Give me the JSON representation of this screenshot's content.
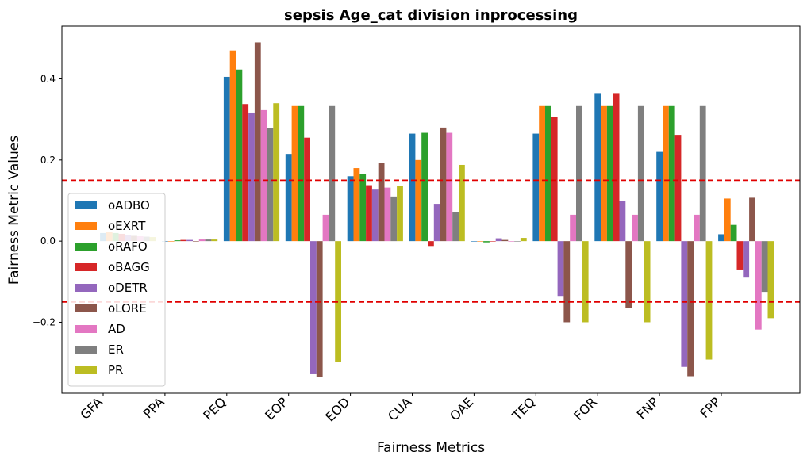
{
  "chart_data": {
    "type": "bar",
    "title": "sepsis Age_cat division inprocessing",
    "xlabel": "Fairness Metrics",
    "ylabel": "Fairness Metric Values",
    "ylim": [
      -0.375,
      0.53
    ],
    "yticks": [
      -0.2,
      0.0,
      0.2,
      0.4
    ],
    "ytick_labels": [
      "−0.2",
      "0.0",
      "0.2",
      "0.4"
    ],
    "categories": [
      "GFA",
      "PPA",
      "PEQ",
      "EOP",
      "EOD",
      "CUA",
      "OAE",
      "TEQ",
      "FOR",
      "FNP",
      "FPP"
    ],
    "threshold_lines": [
      0.15,
      -0.15
    ],
    "threshold_color": "#e00000",
    "grid": false,
    "legend_position": "lower-left",
    "series": [
      {
        "name": "oADBO",
        "color": "#1f77b4",
        "values": [
          0.02,
          0.0,
          0.405,
          0.215,
          0.16,
          0.265,
          0.0,
          0.265,
          0.365,
          0.22,
          0.017
        ]
      },
      {
        "name": "oEXRT",
        "color": "#ff7f0e",
        "values": [
          0.022,
          0.0,
          0.47,
          0.333,
          0.18,
          0.2,
          0.0,
          0.333,
          0.333,
          0.333,
          0.105
        ]
      },
      {
        "name": "oRAFO",
        "color": "#2ca02c",
        "values": [
          0.02,
          0.002,
          0.423,
          0.333,
          0.165,
          0.267,
          -0.003,
          0.333,
          0.333,
          0.333,
          0.04
        ]
      },
      {
        "name": "oBAGG",
        "color": "#d62728",
        "values": [
          0.018,
          0.003,
          0.338,
          0.255,
          0.138,
          -0.012,
          0.0,
          0.307,
          0.365,
          0.262,
          -0.07
        ]
      },
      {
        "name": "oDETR",
        "color": "#9467bd",
        "values": [
          0.015,
          0.003,
          0.317,
          -0.328,
          0.127,
          0.092,
          0.007,
          -0.135,
          0.1,
          -0.31,
          -0.09
        ]
      },
      {
        "name": "oLORE",
        "color": "#8c564b",
        "values": [
          0.013,
          0.0,
          0.49,
          -0.335,
          0.193,
          0.28,
          0.003,
          -0.2,
          -0.165,
          -0.333,
          0.107
        ]
      },
      {
        "name": "AD",
        "color": "#e377c2",
        "values": [
          0.012,
          0.004,
          0.323,
          0.065,
          0.132,
          0.267,
          0.0,
          0.065,
          0.065,
          0.065,
          -0.218
        ]
      },
      {
        "name": "ER",
        "color": "#7f7f7f",
        "values": [
          0.011,
          0.004,
          0.278,
          0.333,
          0.11,
          0.072,
          0.0,
          0.333,
          0.333,
          0.333,
          -0.125
        ]
      },
      {
        "name": "PR",
        "color": "#bcbd22",
        "values": [
          0.01,
          0.004,
          0.34,
          -0.298,
          0.137,
          0.188,
          0.008,
          -0.2,
          -0.2,
          -0.292,
          -0.19
        ]
      }
    ]
  }
}
